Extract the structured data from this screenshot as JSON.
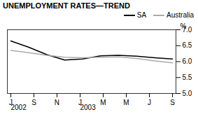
{
  "chart_data": {
    "type": "line",
    "title": "UNEMPLOYMENT RATES—TREND",
    "ylabel": "%",
    "x": [
      0,
      0.7777777777777778,
      1.5555555555555556,
      2.3333333333333335,
      3.111111111111111,
      3.888888888888889,
      4.666666666666667,
      5.444444444444445,
      6.222222222222222,
      7
    ],
    "xlim": [
      -0.15,
      7.15
    ],
    "xticks": [
      {
        "value": 0,
        "label": "J"
      },
      {
        "value": 1,
        "label": "S"
      },
      {
        "value": 2,
        "label": "N"
      },
      {
        "value": 3,
        "label": "J"
      },
      {
        "value": 4,
        "label": "M"
      },
      {
        "value": 5,
        "label": "M"
      },
      {
        "value": 6,
        "label": "J"
      },
      {
        "value": 7,
        "label": "S"
      }
    ],
    "ylim": [
      5.0,
      7.0
    ],
    "yticks": [
      {
        "value": 5.0,
        "label": "5.0"
      },
      {
        "value": 5.5,
        "label": "5.5"
      },
      {
        "value": 6.0,
        "label": "6.0"
      },
      {
        "value": 6.5,
        "label": "6.5"
      },
      {
        "value": 7.0,
        "label": "7.0"
      }
    ],
    "series": [
      {
        "name": "SA",
        "color": "#000000",
        "values": [
          6.65,
          6.45,
          6.22,
          6.05,
          6.08,
          6.18,
          6.2,
          6.17,
          6.12,
          6.08
        ]
      },
      {
        "name": "Australia",
        "color": "#aaaaaa",
        "values": [
          6.35,
          6.28,
          6.2,
          6.14,
          6.12,
          6.14,
          6.15,
          6.1,
          6.02,
          5.96
        ]
      }
    ],
    "annotations": [
      {
        "text": "2002",
        "x": 0
      },
      {
        "text": "2003",
        "x": 3
      }
    ],
    "legend": "upper right",
    "grid": false
  }
}
